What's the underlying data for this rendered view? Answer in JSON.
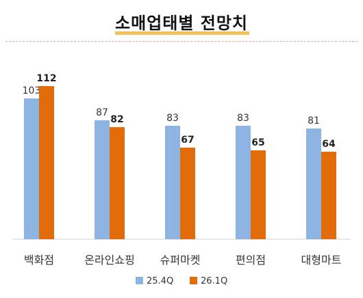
{
  "chart_data": {
    "type": "bar",
    "title": "소매업태별 전망치",
    "categories": [
      "백화점",
      "온라인쇼핑",
      "슈퍼마켓",
      "편의점",
      "대형마트"
    ],
    "series": [
      {
        "name": "25.4Q",
        "values": [
          103,
          87,
          83,
          83,
          81
        ],
        "color": "#8db4e2"
      },
      {
        "name": "26.1Q",
        "values": [
          112,
          82,
          67,
          65,
          64
        ],
        "color": "#e36c0a"
      }
    ],
    "ylim": [
      0,
      130
    ],
    "xlabel": "",
    "ylabel": "",
    "grid": false,
    "legend_position": "bottom"
  }
}
